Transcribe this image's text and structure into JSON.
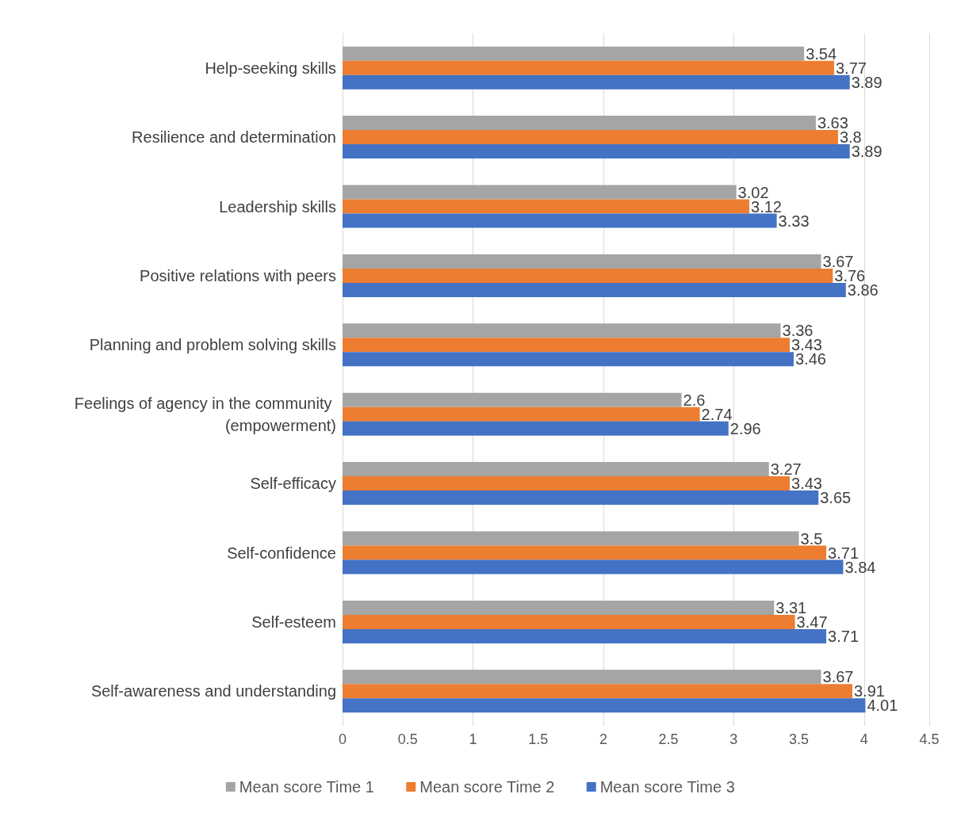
{
  "chart_data": {
    "type": "bar",
    "orientation": "horizontal",
    "categories": [
      "Help-seeking skills",
      "Resilience and determination",
      "Leadership skills",
      "Positive relations with peers",
      "Planning and problem solving skills",
      "Feelings of agency in the community (empowerment)",
      "Self-efficacy",
      "Self-confidence",
      "Self-esteem",
      "Self-awareness and understanding"
    ],
    "series": [
      {
        "name": "Mean score Time 1",
        "color": "#a5a5a5",
        "values": [
          3.54,
          3.63,
          3.02,
          3.67,
          3.36,
          2.6,
          3.27,
          3.5,
          3.31,
          3.67
        ]
      },
      {
        "name": "Mean score Time 2",
        "color": "#ed7d31",
        "values": [
          3.77,
          3.8,
          3.12,
          3.76,
          3.43,
          2.74,
          3.43,
          3.71,
          3.47,
          3.91
        ]
      },
      {
        "name": "Mean score Time 3",
        "color": "#4472c4",
        "values": [
          3.89,
          3.89,
          3.33,
          3.86,
          3.46,
          2.96,
          3.65,
          3.84,
          3.71,
          4.01
        ]
      }
    ],
    "xlim": [
      0,
      4.5
    ],
    "xticks": [
      0,
      0.5,
      1,
      1.5,
      2,
      2.5,
      3,
      3.5,
      4,
      4.5
    ],
    "grid": "x",
    "legend": "bottom",
    "data_labels": true
  }
}
